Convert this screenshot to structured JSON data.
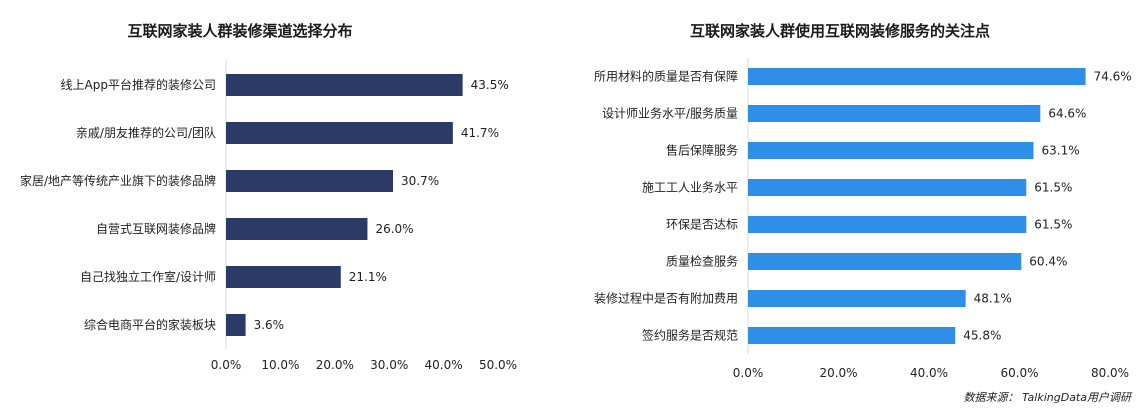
{
  "chart_data": [
    {
      "type": "bar",
      "orientation": "horizontal",
      "title": "互联网家装人群装修渠道选择分布",
      "categories": [
        "线上App平台推荐的装修公司",
        "亲戚/朋友推荐的公司/团队",
        "家居/地产等传统产业旗下的装修品牌",
        "自营式互联网装修品牌",
        "自己找独立工作室/设计师",
        "综合电商平台的家装板块"
      ],
      "values": [
        43.5,
        41.7,
        30.7,
        26.0,
        21.1,
        3.6
      ],
      "value_labels": [
        "43.5%",
        "41.7%",
        "30.7%",
        "26.0%",
        "21.1%",
        "3.6%"
      ],
      "xlim": [
        0,
        50
      ],
      "xticks": [
        "0.0%",
        "10.0%",
        "20.0%",
        "30.0%",
        "40.0%",
        "50.0%"
      ],
      "grid": false,
      "color": "#2b3a66"
    },
    {
      "type": "bar",
      "orientation": "horizontal",
      "title": "互联网家装人群使用互联网装修服务的关注点",
      "categories": [
        "所用材料的质量是否有保障",
        "设计师业务水平/服务质量",
        "售后保障服务",
        "施工工人业务水平",
        "环保是否达标",
        "质量检查服务",
        "装修过程中是否有附加费用",
        "签约服务是否规范"
      ],
      "values": [
        74.6,
        64.6,
        63.1,
        61.5,
        61.5,
        60.4,
        48.1,
        45.8
      ],
      "value_labels": [
        "74.6%",
        "64.6%",
        "63.1%",
        "61.5%",
        "61.5%",
        "60.4%",
        "48.1%",
        "45.8%"
      ],
      "xlim": [
        0,
        80
      ],
      "xticks": [
        "0.0%",
        "20.0%",
        "40.0%",
        "60.0%",
        "80.0%"
      ],
      "grid": false,
      "color": "#2e8ee8"
    }
  ],
  "source_text": "数据来源： TalkingData用户调研"
}
